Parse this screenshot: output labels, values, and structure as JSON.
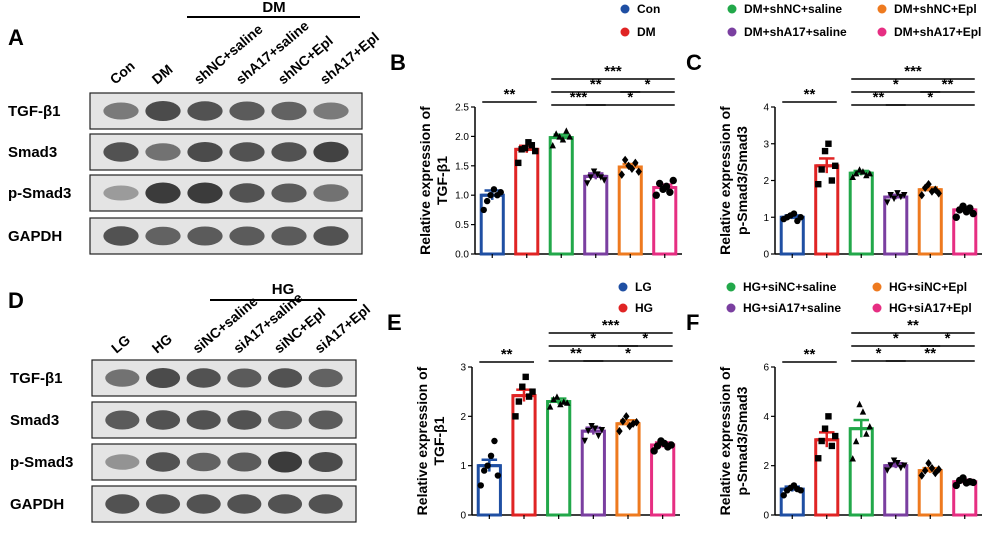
{
  "colors": {
    "con": "#1f4fa3",
    "dm": "#e02424",
    "shnc_saline": "#22a84a",
    "sha17_saline": "#7a3fa0",
    "shnc_epl": "#ee7a1f",
    "sha17_epl": "#e62e82"
  },
  "panels": {
    "A": {
      "letter": "A",
      "group_label": "DM",
      "lanes": [
        "Con",
        "DM",
        "shNC+saline",
        "shA17+saline",
        "shNC+Epl",
        "shA17+Epl"
      ],
      "rows": [
        "TGF-β1",
        "Smad3",
        "p-Smad3",
        "GAPDH"
      ],
      "band_intensity": [
        [
          0.55,
          0.85,
          0.8,
          0.75,
          0.7,
          0.55
        ],
        [
          0.8,
          0.6,
          0.85,
          0.8,
          0.8,
          0.9
        ],
        [
          0.35,
          0.95,
          0.95,
          0.8,
          0.75,
          0.6
        ],
        [
          0.8,
          0.7,
          0.75,
          0.75,
          0.75,
          0.8
        ]
      ]
    },
    "D": {
      "letter": "D",
      "group_label": "HG",
      "lanes": [
        "LG",
        "HG",
        "siNC+saline",
        "siA17+saline",
        "siNC+Epl",
        "siA17+Epl"
      ],
      "rows": [
        "TGF-β1",
        "Smad3",
        "p-Smad3",
        "GAPDH"
      ],
      "band_intensity": [
        [
          0.6,
          0.85,
          0.8,
          0.75,
          0.8,
          0.7
        ],
        [
          0.75,
          0.8,
          0.8,
          0.8,
          0.7,
          0.75
        ],
        [
          0.4,
          0.8,
          0.7,
          0.75,
          0.95,
          0.85
        ],
        [
          0.8,
          0.8,
          0.8,
          0.8,
          0.8,
          0.8
        ]
      ]
    }
  },
  "legend_top": {
    "items": [
      "Con",
      "DM",
      "DM+shNC+saline",
      "DM+shA17+saline",
      "DM+shNC+Epl",
      "DM+shA17+Epl"
    ]
  },
  "legend_bottom": {
    "items": [
      "LG",
      "HG",
      "HG+siNC+saline",
      "HG+siA17+saline",
      "HG+siNC+Epl",
      "HG+siA17+Epl"
    ]
  },
  "chart_data": [
    {
      "panel": "B",
      "type": "bar",
      "ylabel": "Relative expression of TGF-β1",
      "ylim": [
        0,
        2.5
      ],
      "yticks": [
        "0.0",
        "0.5",
        "1.0",
        "1.5",
        "2.0",
        "2.5"
      ],
      "categories": [
        "Con",
        "DM",
        "DM+shNC+saline",
        "DM+shA17+saline",
        "DM+shNC+Epl",
        "DM+shA17+Epl"
      ],
      "values": [
        1.0,
        1.78,
        1.98,
        1.32,
        1.48,
        1.13
      ],
      "errors": [
        0.08,
        0.06,
        0.05,
        0.05,
        0.05,
        0.05
      ],
      "points": [
        [
          0.75,
          0.9,
          1.0,
          1.1,
          1.0,
          1.05
        ],
        [
          1.55,
          1.78,
          1.8,
          1.9,
          1.85,
          1.75
        ],
        [
          1.85,
          2.05,
          2.0,
          1.95,
          2.1,
          2.0
        ],
        [
          1.2,
          1.3,
          1.4,
          1.35,
          1.3,
          1.25
        ],
        [
          1.35,
          1.6,
          1.5,
          1.45,
          1.55,
          1.4
        ],
        [
          1.0,
          1.2,
          1.1,
          1.15,
          1.05,
          1.25
        ]
      ],
      "significance": [
        {
          "from": 0,
          "to": 1,
          "label": "**"
        },
        {
          "from": 2,
          "to": 5,
          "label": "***"
        },
        {
          "from": 2,
          "to": 4,
          "label": "**"
        },
        {
          "from": 4,
          "to": 5,
          "label": "*"
        },
        {
          "from": 2,
          "to": 3,
          "label": "***"
        },
        {
          "from": 3,
          "to": 5,
          "label": "*"
        }
      ]
    },
    {
      "panel": "C",
      "type": "bar",
      "ylabel": "Relative expression of p-Smad3/Smad3",
      "ylim": [
        0,
        4
      ],
      "yticks": [
        "0",
        "1",
        "2",
        "3",
        "4"
      ],
      "categories": [
        "Con",
        "DM",
        "DM+shNC+saline",
        "DM+shA17+saline",
        "DM+shNC+Epl",
        "DM+shA17+Epl"
      ],
      "values": [
        1.0,
        2.4,
        2.2,
        1.55,
        1.75,
        1.2
      ],
      "errors": [
        0.05,
        0.2,
        0.06,
        0.06,
        0.06,
        0.05
      ],
      "points": [
        [
          0.95,
          1.0,
          1.05,
          1.1,
          0.9,
          1.0
        ],
        [
          1.9,
          2.3,
          2.8,
          3.0,
          2.0,
          2.4
        ],
        [
          2.1,
          2.2,
          2.3,
          2.25,
          2.15,
          2.2
        ],
        [
          1.4,
          1.6,
          1.5,
          1.65,
          1.55,
          1.6
        ],
        [
          1.6,
          1.8,
          1.9,
          1.7,
          1.75,
          1.65
        ],
        [
          1.0,
          1.2,
          1.3,
          1.15,
          1.25,
          1.1
        ]
      ],
      "significance": [
        {
          "from": 0,
          "to": 1,
          "label": "**"
        },
        {
          "from": 2,
          "to": 5,
          "label": "***"
        },
        {
          "from": 2,
          "to": 4,
          "label": "*"
        },
        {
          "from": 4,
          "to": 5,
          "label": "**"
        },
        {
          "from": 2,
          "to": 3,
          "label": "**"
        },
        {
          "from": 3,
          "to": 5,
          "label": "*"
        }
      ]
    },
    {
      "panel": "E",
      "type": "bar",
      "ylabel": "Relative expression of TGF-β1",
      "ylim": [
        0,
        3
      ],
      "yticks": [
        "0",
        "1",
        "2",
        "3"
      ],
      "categories": [
        "LG",
        "HG",
        "HG+siNC+saline",
        "HG+siA17+saline",
        "HG+siNC+Epl",
        "HG+siA17+Epl"
      ],
      "values": [
        1.0,
        2.42,
        2.3,
        1.7,
        1.85,
        1.42
      ],
      "errors": [
        0.12,
        0.12,
        0.06,
        0.07,
        0.07,
        0.05
      ],
      "points": [
        [
          0.6,
          0.9,
          1.0,
          1.2,
          1.5,
          0.8
        ],
        [
          2.0,
          2.3,
          2.6,
          2.8,
          2.4,
          2.5
        ],
        [
          2.2,
          2.35,
          2.4,
          2.25,
          2.3,
          2.28
        ],
        [
          1.5,
          1.7,
          1.8,
          1.75,
          1.6,
          1.72
        ],
        [
          1.7,
          1.9,
          2.0,
          1.8,
          1.85,
          1.88
        ],
        [
          1.3,
          1.4,
          1.5,
          1.45,
          1.38,
          1.42
        ]
      ],
      "significance": [
        {
          "from": 0,
          "to": 1,
          "label": "**"
        },
        {
          "from": 2,
          "to": 5,
          "label": "***"
        },
        {
          "from": 2,
          "to": 4,
          "label": "*"
        },
        {
          "from": 4,
          "to": 5,
          "label": "*"
        },
        {
          "from": 2,
          "to": 3,
          "label": "**"
        },
        {
          "from": 3,
          "to": 5,
          "label": "*"
        }
      ]
    },
    {
      "panel": "F",
      "type": "bar",
      "ylabel": "Relative expression of p-Smad3/Smad3",
      "ylim": [
        0,
        6
      ],
      "yticks": [
        "0",
        "2",
        "4",
        "6"
      ],
      "categories": [
        "LG",
        "HG",
        "HG+siNC+saline",
        "HG+siA17+saline",
        "HG+siNC+Epl",
        "HG+siA17+Epl"
      ],
      "values": [
        1.05,
        3.05,
        3.5,
        2.0,
        1.8,
        1.35
      ],
      "errors": [
        0.1,
        0.3,
        0.35,
        0.1,
        0.1,
        0.08
      ],
      "points": [
        [
          0.8,
          1.0,
          1.1,
          1.2,
          1.05,
          1.0
        ],
        [
          2.3,
          3.0,
          3.5,
          4.0,
          2.8,
          3.2
        ],
        [
          2.3,
          3.0,
          4.5,
          4.2,
          3.3,
          3.6
        ],
        [
          1.8,
          2.0,
          2.2,
          2.1,
          1.9,
          2.0
        ],
        [
          1.6,
          1.8,
          2.1,
          1.9,
          1.7,
          1.85
        ],
        [
          1.2,
          1.4,
          1.5,
          1.3,
          1.35,
          1.32
        ]
      ],
      "significance": [
        {
          "from": 0,
          "to": 1,
          "label": "**"
        },
        {
          "from": 2,
          "to": 5,
          "label": "**"
        },
        {
          "from": 2,
          "to": 4,
          "label": "*"
        },
        {
          "from": 4,
          "to": 5,
          "label": "*"
        },
        {
          "from": 2,
          "to": 3,
          "label": "*"
        },
        {
          "from": 3,
          "to": 5,
          "label": "**"
        }
      ]
    }
  ]
}
